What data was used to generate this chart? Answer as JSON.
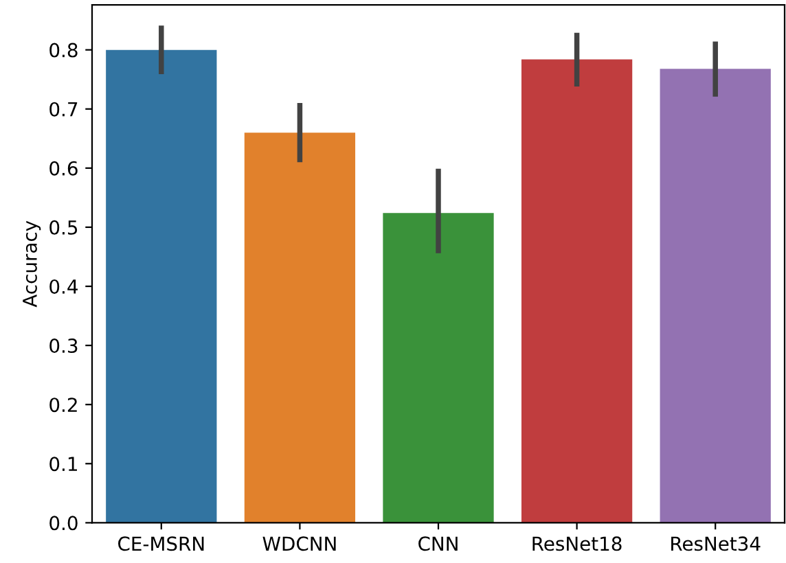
{
  "chart_data": {
    "type": "bar",
    "ylabel": "Accuracy",
    "categories": [
      "CE-MSRN",
      "WDCNN",
      "CNN",
      "ResNet18",
      "ResNet34"
    ],
    "values": [
      0.8,
      0.66,
      0.524,
      0.784,
      0.768
    ],
    "errors": [
      [
        0.759,
        0.841
      ],
      [
        0.61,
        0.71
      ],
      [
        0.456,
        0.599
      ],
      [
        0.738,
        0.829
      ],
      [
        0.721,
        0.814
      ]
    ],
    "colors": [
      "#3274a1",
      "#e1812c",
      "#3a923a",
      "#c03d3e",
      "#9372b2"
    ],
    "ylim": [
      0,
      0.876
    ],
    "yticks": [
      {
        "value": 0,
        "label": "0.0"
      },
      0.1,
      0.2,
      0.3,
      0.4,
      0.5,
      0.6,
      0.7,
      0.8
    ],
    "grid": false,
    "legend": false
  }
}
